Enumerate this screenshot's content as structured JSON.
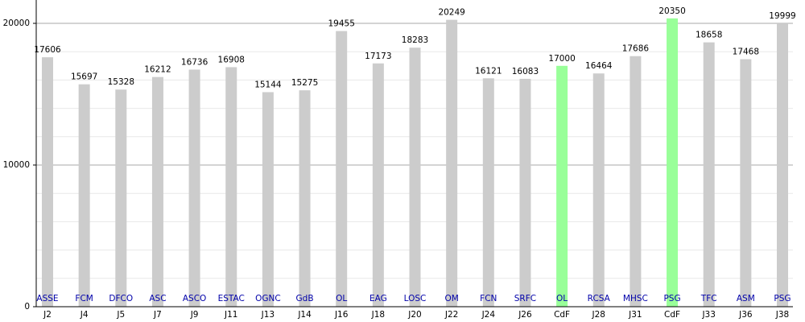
{
  "chart_data": {
    "type": "bar",
    "categories": [
      "J2",
      "J4",
      "J5",
      "J7",
      "J9",
      "J11",
      "J13",
      "J14",
      "J16",
      "J18",
      "J20",
      "J22",
      "J24",
      "J26",
      "CdF",
      "J28",
      "J31",
      "CdF",
      "J33",
      "J36",
      "J38"
    ],
    "opponents": [
      "ASSE",
      "FCM",
      "DFCO",
      "ASC",
      "ASCO",
      "ESTAC",
      "OGNC",
      "GdB",
      "OL",
      "EAG",
      "LOSC",
      "OM",
      "FCN",
      "SRFC",
      "OL",
      "RCSA",
      "MHSC",
      "PSG",
      "TFC",
      "ASM",
      "PSG"
    ],
    "values": [
      17606,
      15697,
      15328,
      16212,
      16736,
      16908,
      15144,
      15275,
      19455,
      17173,
      18283,
      20249,
      16121,
      16083,
      17000,
      16464,
      17686,
      20350,
      18658,
      17468,
      19999
    ],
    "colors": [
      "#cccccc",
      "#cccccc",
      "#cccccc",
      "#cccccc",
      "#cccccc",
      "#cccccc",
      "#cccccc",
      "#cccccc",
      "#cccccc",
      "#cccccc",
      "#cccccc",
      "#cccccc",
      "#cccccc",
      "#cccccc",
      "#99ff99",
      "#cccccc",
      "#cccccc",
      "#99ff99",
      "#cccccc",
      "#cccccc",
      "#cccccc"
    ],
    "ylim": [
      0,
      21000
    ],
    "yticks": [
      0,
      10000,
      20000
    ],
    "minor_yticks": [
      2000,
      4000,
      6000,
      8000,
      12000,
      14000,
      16000,
      18000
    ],
    "grid": true
  }
}
